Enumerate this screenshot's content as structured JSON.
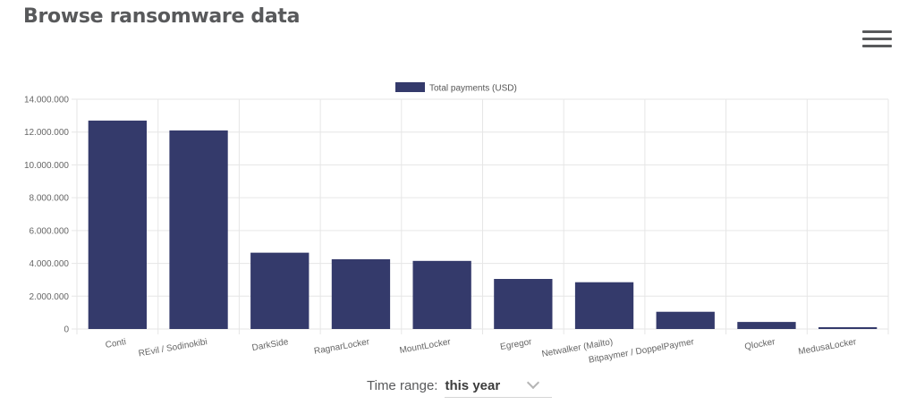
{
  "header": {
    "title": "Browse ransomware data",
    "menu_icon": "hamburger-icon"
  },
  "colors": {
    "bar": "#343a6b",
    "grid": "#e6e6e6",
    "text": "#666666"
  },
  "chart_data": {
    "type": "bar",
    "title": "",
    "xlabel": "",
    "ylabel": "",
    "ylim": [
      0,
      14000000
    ],
    "y_ticks": [
      0,
      2000000,
      4000000,
      6000000,
      8000000,
      10000000,
      12000000,
      14000000
    ],
    "y_tick_labels": [
      "0",
      "2.000.000",
      "4.000.000",
      "6.000.000",
      "8.000.000",
      "10.000.000",
      "12.000.000",
      "14.000.000"
    ],
    "legend_position": "top-center",
    "grid": true,
    "categories": [
      "Conti",
      "REvil / Sodinokibi",
      "DarkSide",
      "RagnarLocker",
      "MountLocker",
      "Egregor",
      "Netwalker (Mailto)",
      "Bitpaymer / DoppelPaymer",
      "Qlocker",
      "MedusaLocker"
    ],
    "series": [
      {
        "name": "Total payments (USD)",
        "values": [
          12700000,
          12100000,
          4650000,
          4250000,
          4150000,
          3050000,
          2850000,
          1050000,
          430000,
          110000
        ]
      }
    ]
  },
  "controls": {
    "time_range_label": "Time range:",
    "time_range_value": "this year"
  }
}
